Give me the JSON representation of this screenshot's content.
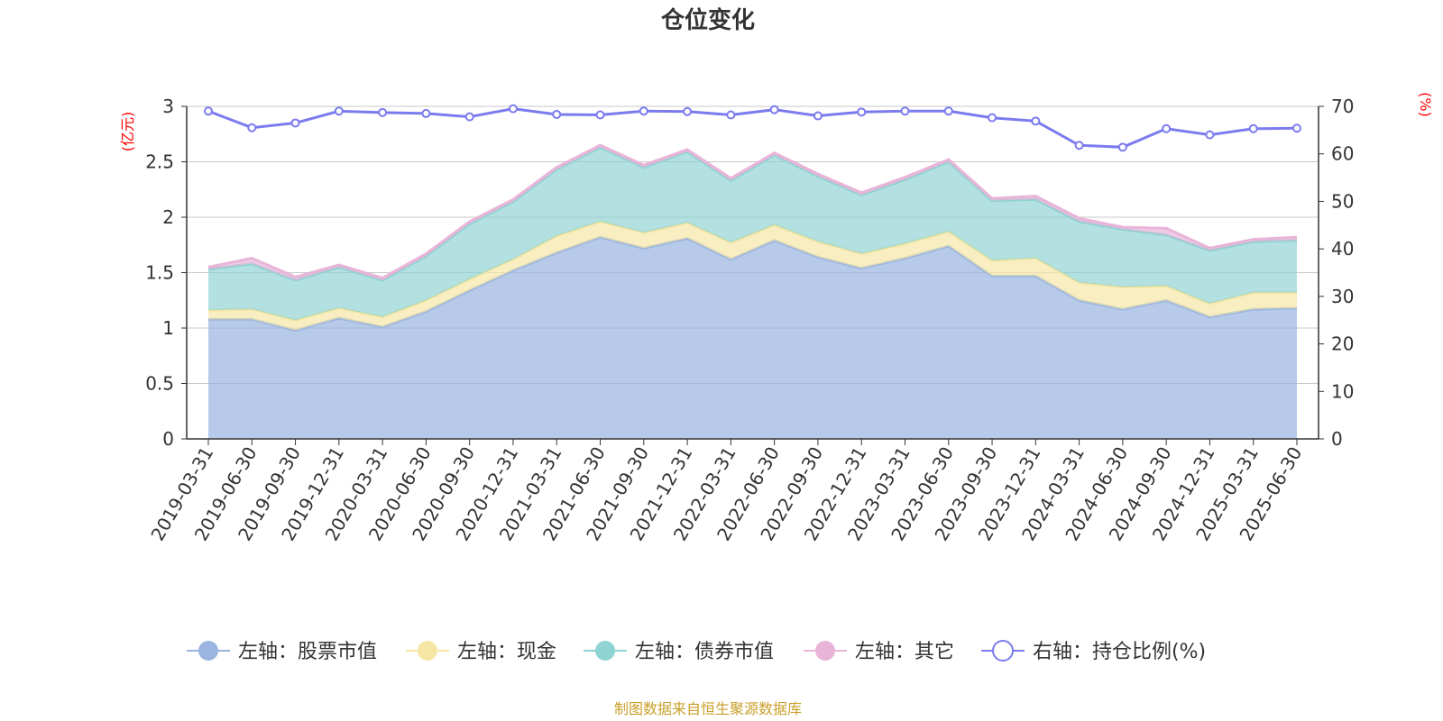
{
  "chart_data": {
    "type": "area",
    "title": "仓位变化",
    "left_axis_unit": "(亿元)",
    "right_axis_unit": "(%)",
    "ylim_left": [
      0,
      3
    ],
    "ylim_right": [
      0,
      70
    ],
    "left_ticks": [
      "0",
      "0.5",
      "1",
      "1.5",
      "2",
      "2.5",
      "3"
    ],
    "right_ticks": [
      "0",
      "10",
      "20",
      "30",
      "40",
      "50",
      "60",
      "70"
    ],
    "stacked": true,
    "grid": true,
    "legend_position": "bottom",
    "categories": [
      "2019-03-31",
      "2019-06-30",
      "2019-09-30",
      "2019-12-31",
      "2020-03-31",
      "2020-06-30",
      "2020-09-30",
      "2020-12-31",
      "2021-03-31",
      "2021-06-30",
      "2021-09-30",
      "2021-12-31",
      "2022-03-31",
      "2022-06-30",
      "2022-09-30",
      "2022-12-31",
      "2023-03-31",
      "2023-06-30",
      "2023-09-30",
      "2023-12-31",
      "2024-03-31",
      "2024-06-30",
      "2024-09-30",
      "2024-12-31",
      "2025-03-31",
      "2025-06-30"
    ],
    "series": [
      {
        "name": "左轴：股票市值",
        "axis": "left",
        "color": "#9bb5e0",
        "values": [
          1.08,
          1.08,
          0.98,
          1.09,
          1.01,
          1.15,
          1.34,
          1.52,
          1.68,
          1.82,
          1.72,
          1.81,
          1.62,
          1.79,
          1.64,
          1.54,
          1.63,
          1.74,
          1.47,
          1.47,
          1.25,
          1.17,
          1.25,
          1.1,
          1.17,
          1.18
        ]
      },
      {
        "name": "左轴：现金",
        "axis": "left",
        "color": "#f5e6a3",
        "values": [
          0.08,
          0.09,
          0.09,
          0.09,
          0.09,
          0.1,
          0.1,
          0.1,
          0.15,
          0.14,
          0.14,
          0.14,
          0.15,
          0.14,
          0.14,
          0.13,
          0.13,
          0.13,
          0.14,
          0.16,
          0.16,
          0.2,
          0.13,
          0.12,
          0.15,
          0.14
        ]
      },
      {
        "name": "左轴：债券市值",
        "axis": "left",
        "color": "#8fd3d3",
        "values": [
          0.37,
          0.41,
          0.36,
          0.37,
          0.33,
          0.4,
          0.5,
          0.52,
          0.6,
          0.67,
          0.59,
          0.64,
          0.56,
          0.63,
          0.59,
          0.53,
          0.58,
          0.63,
          0.54,
          0.53,
          0.55,
          0.52,
          0.46,
          0.48,
          0.46,
          0.47
        ]
      },
      {
        "name": "左轴：其它",
        "axis": "left",
        "color": "#e8b4d8",
        "values": [
          0.02,
          0.05,
          0.03,
          0.02,
          0.02,
          0.02,
          0.02,
          0.02,
          0.02,
          0.02,
          0.02,
          0.02,
          0.02,
          0.02,
          0.02,
          0.02,
          0.02,
          0.02,
          0.02,
          0.03,
          0.03,
          0.02,
          0.06,
          0.02,
          0.02,
          0.03
        ]
      },
      {
        "name": "右轴：持仓比例(%)",
        "axis": "right",
        "color": "#7b7bef",
        "values": [
          69,
          65.5,
          66.5,
          69,
          68.7,
          68.5,
          67.8,
          69.5,
          68.3,
          68.2,
          69,
          68.9,
          68.2,
          69.3,
          68,
          68.8,
          69,
          69,
          67.6,
          66.9,
          61.8,
          61.4,
          65.3,
          64,
          65.3,
          65.4
        ]
      }
    ],
    "source_note": "制图数据来自恒生聚源数据库"
  }
}
